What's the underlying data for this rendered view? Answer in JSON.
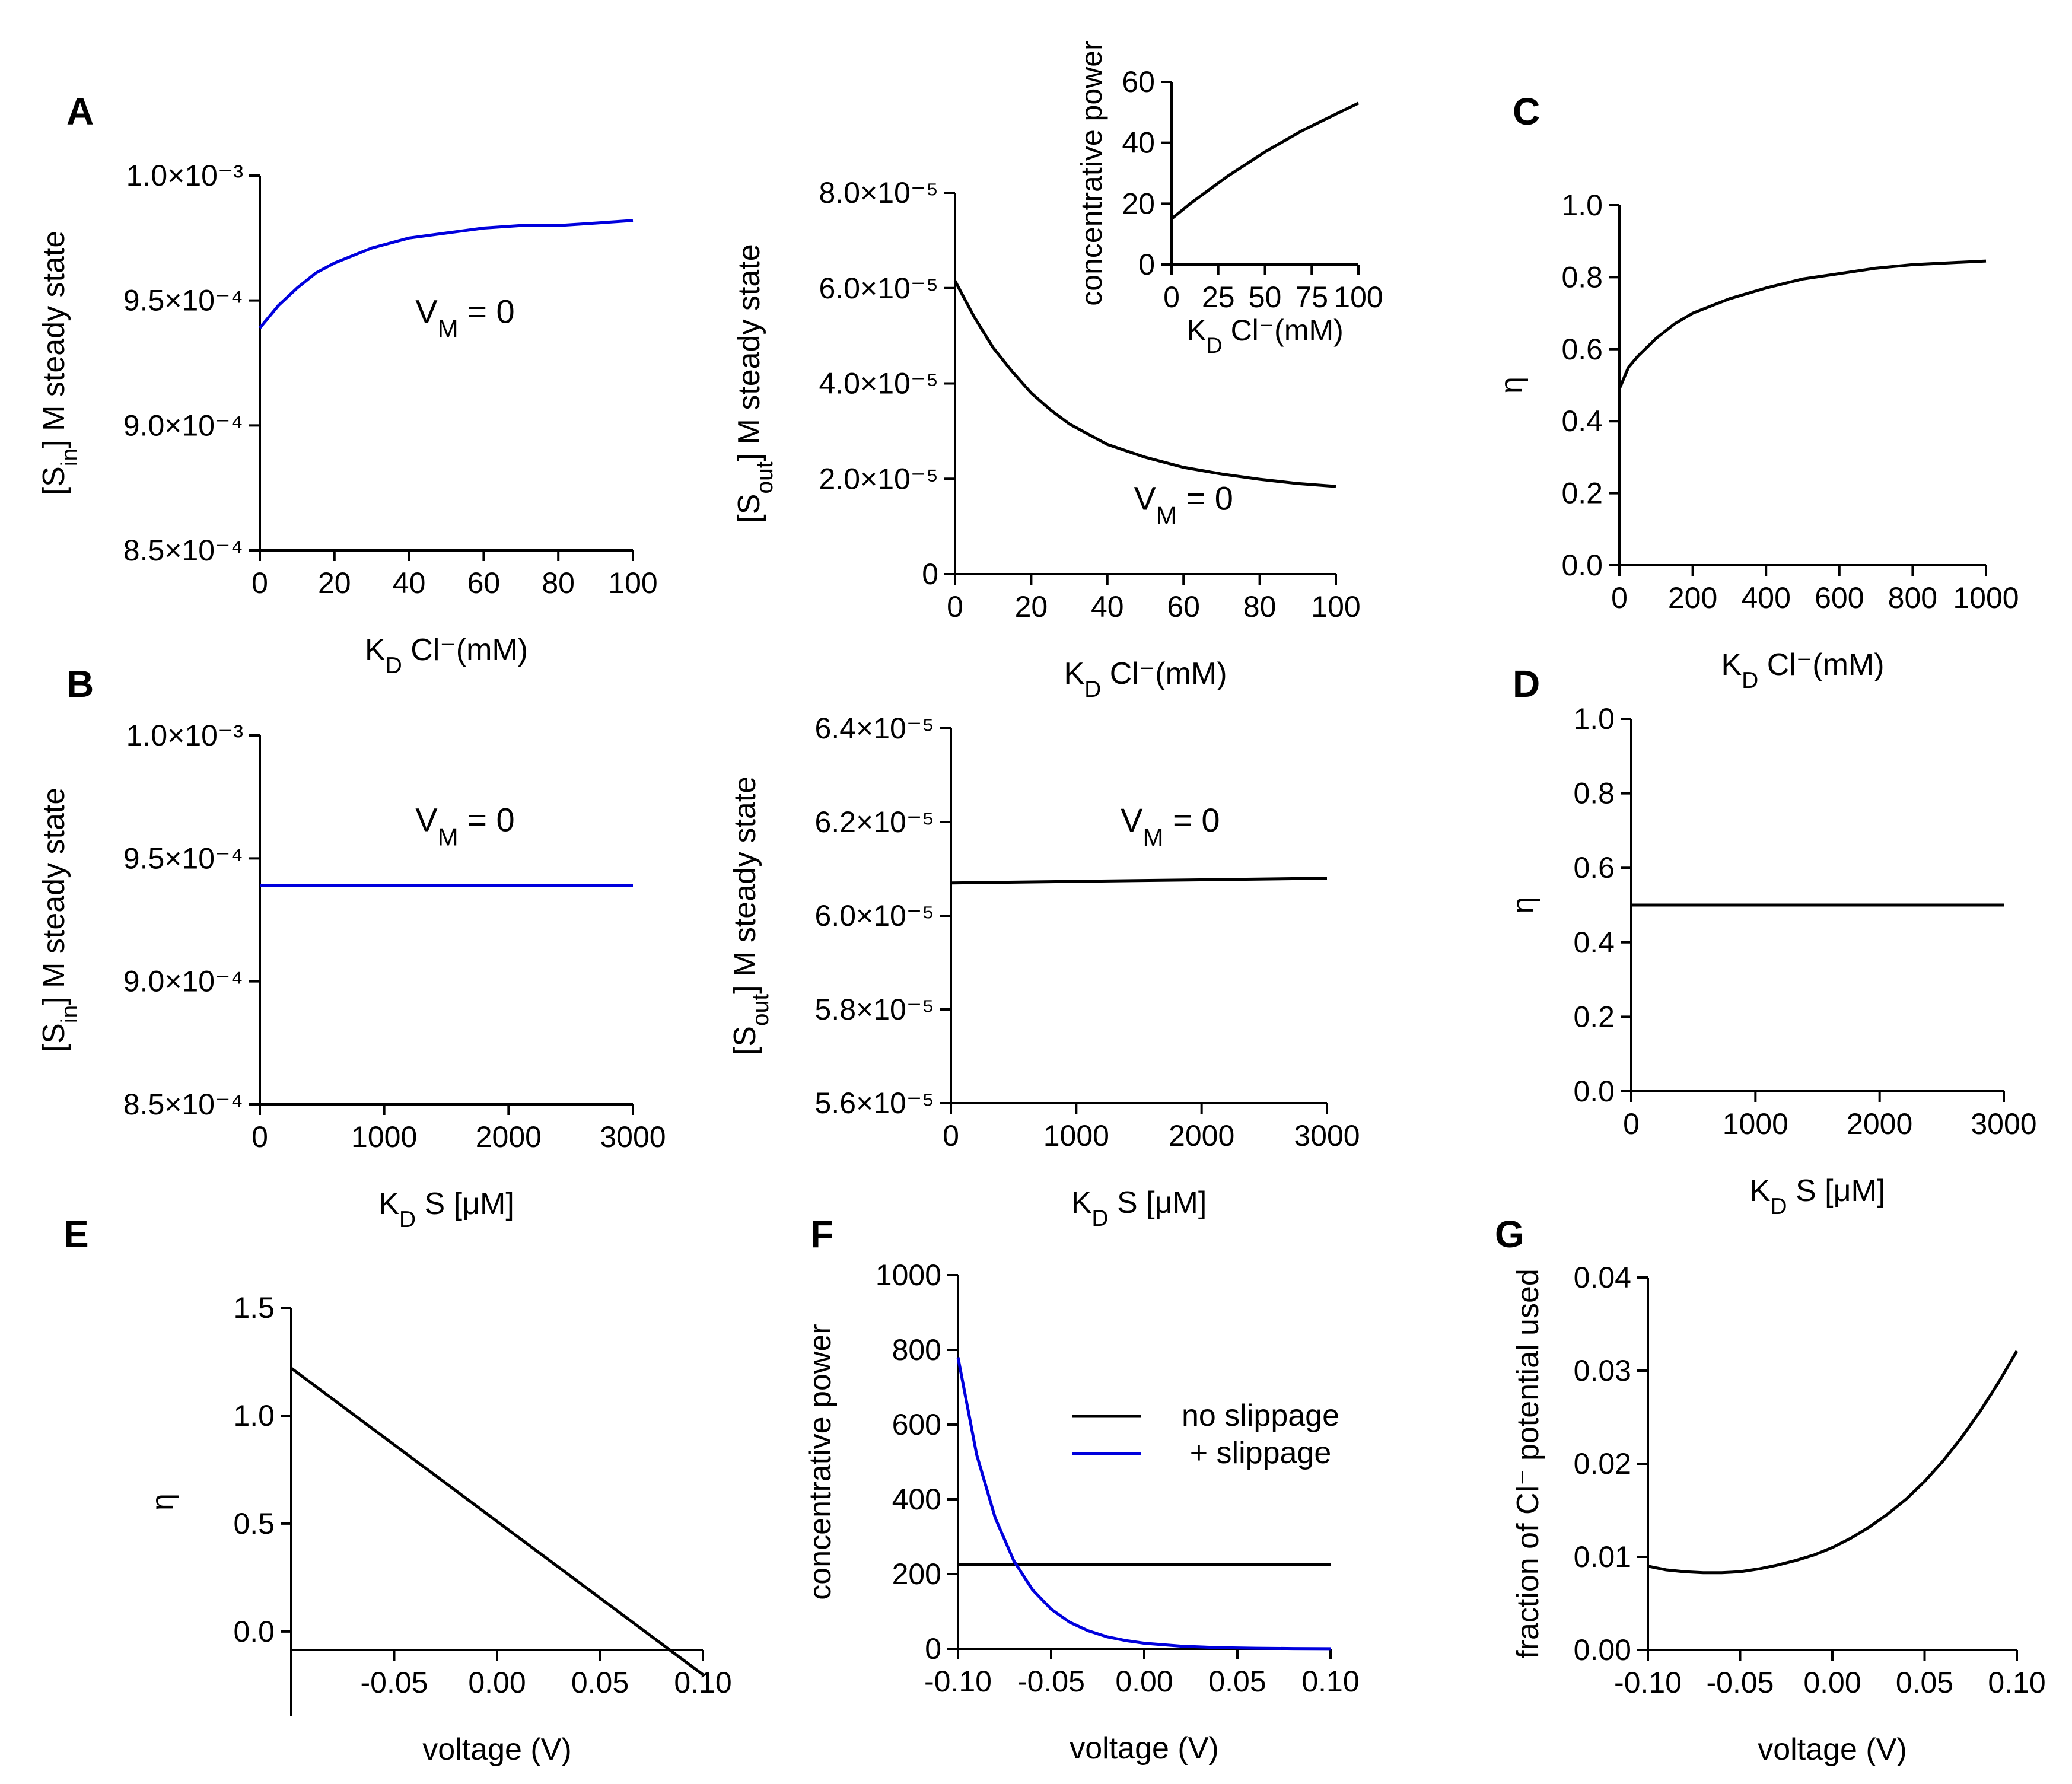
{
  "chart_data": [
    {
      "id": "A_left",
      "panel_letter": "A",
      "type": "line",
      "ylabel": "[S_in] M steady state",
      "xlabel": "K_D Cl⁻(mM)",
      "xlim": [
        0,
        100
      ],
      "ylim": [
        0.00085,
        0.001
      ],
      "xticks": [
        0,
        20,
        40,
        60,
        80,
        100
      ],
      "xtick_labels": [
        "0",
        "20",
        "40",
        "60",
        "80",
        "100"
      ],
      "yticks": [
        0.00085,
        0.0009,
        0.00095,
        0.001
      ],
      "ytick_labels": [
        "8.5×10⁻⁴",
        "9.0×10⁻⁴",
        "9.5×10⁻⁴",
        "1.0×10⁻³"
      ],
      "annotation": "V_M = 0",
      "annotation_at": [
        55,
        0.000941
      ],
      "series": [
        {
          "color": "#0000dd",
          "x": [
            0,
            5,
            10,
            15,
            20,
            25,
            30,
            40,
            50,
            60,
            70,
            80,
            90,
            100
          ],
          "y": [
            0.000939,
            0.000948,
            0.000955,
            0.000961,
            0.000965,
            0.000968,
            0.000971,
            0.000975,
            0.000977,
            0.000979,
            0.00098,
            0.00098,
            0.000981,
            0.000982
          ]
        }
      ]
    },
    {
      "id": "A_mid",
      "type": "line",
      "ylabel": "[S_out] M steady state",
      "xlabel": "K_D Cl⁻(mM)",
      "xlim": [
        0,
        100
      ],
      "ylim": [
        0,
        8e-05
      ],
      "xticks": [
        0,
        20,
        40,
        60,
        80,
        100
      ],
      "xtick_labels": [
        "0",
        "20",
        "40",
        "60",
        "80",
        "100"
      ],
      "yticks": [
        0,
        2e-05,
        4e-05,
        6e-05,
        8e-05
      ],
      "ytick_labels": [
        "0",
        "2.0×10⁻⁵",
        "4.0×10⁻⁵",
        "6.0×10⁻⁵",
        "8.0×10⁻⁵"
      ],
      "annotation": "V_M = 0",
      "annotation_at": [
        60,
        1.35e-05
      ],
      "series": [
        {
          "color": "#000000",
          "x": [
            0,
            5,
            10,
            15,
            20,
            25,
            30,
            40,
            50,
            60,
            70,
            80,
            90,
            100
          ],
          "y": [
            6.15e-05,
            5.4e-05,
            4.75e-05,
            4.25e-05,
            3.8e-05,
            3.45e-05,
            3.15e-05,
            2.72e-05,
            2.45e-05,
            2.24e-05,
            2.1e-05,
            1.99e-05,
            1.9e-05,
            1.84e-05
          ]
        }
      ]
    },
    {
      "id": "A_inset",
      "type": "line",
      "ylabel": "concentrative power",
      "xlabel": "K_D Cl⁻(mM)",
      "xlim": [
        0,
        100
      ],
      "ylim": [
        0,
        60
      ],
      "xticks": [
        0,
        25,
        50,
        75,
        100
      ],
      "xtick_labels": [
        "0",
        "25",
        "50",
        "75",
        "100"
      ],
      "yticks": [
        0,
        20,
        40,
        60
      ],
      "ytick_labels": [
        "0",
        "20",
        "40",
        "60"
      ],
      "series": [
        {
          "color": "#000000",
          "x": [
            0,
            10,
            20,
            30,
            40,
            50,
            60,
            70,
            80,
            90,
            100
          ],
          "y": [
            15,
            20,
            24.5,
            29,
            33,
            37,
            40.5,
            44,
            47,
            50,
            53
          ]
        }
      ]
    },
    {
      "id": "C",
      "panel_letter": "C",
      "type": "line",
      "ylabel": "η",
      "xlabel": "K_D Cl⁻(mM)",
      "xlim": [
        0,
        1000
      ],
      "ylim": [
        0,
        1
      ],
      "xticks": [
        0,
        200,
        400,
        600,
        800,
        1000
      ],
      "xtick_labels": [
        "0",
        "200",
        "400",
        "600",
        "800",
        "1000"
      ],
      "yticks": [
        0,
        0.2,
        0.4,
        0.6,
        0.8,
        1
      ],
      "ytick_labels": [
        "0.0",
        "0.2",
        "0.4",
        "0.6",
        "0.8",
        "1.0"
      ],
      "series": [
        {
          "color": "#000000",
          "x": [
            0,
            25,
            50,
            100,
            150,
            200,
            300,
            400,
            500,
            600,
            700,
            800,
            900,
            1000
          ],
          "y": [
            0.49,
            0.55,
            0.58,
            0.63,
            0.67,
            0.7,
            0.74,
            0.77,
            0.795,
            0.81,
            0.825,
            0.835,
            0.84,
            0.845
          ]
        }
      ]
    },
    {
      "id": "B_left",
      "panel_letter": "B",
      "type": "line",
      "ylabel": "[S_in] M steady state",
      "xlabel": "K_D S [μM]",
      "xlim": [
        0,
        3000
      ],
      "ylim": [
        0.00085,
        0.001
      ],
      "xticks": [
        0,
        1000,
        2000,
        3000
      ],
      "xtick_labels": [
        "0",
        "1000",
        "2000",
        "3000"
      ],
      "yticks": [
        0.00085,
        0.0009,
        0.00095,
        0.001
      ],
      "ytick_labels": [
        "8.5×10⁻⁴",
        "9.0×10⁻⁴",
        "9.5×10⁻⁴",
        "1.0×10⁻³"
      ],
      "annotation": "V_M = 0",
      "annotation_at": [
        1650,
        0.000961
      ],
      "series": [
        {
          "color": "#0000dd",
          "x": [
            0,
            3000
          ],
          "y": [
            0.000939,
            0.000939
          ]
        }
      ]
    },
    {
      "id": "B_mid",
      "type": "line",
      "ylabel": "[S_out] M steady state",
      "xlabel": "K_D S [μM]",
      "xlim": [
        0,
        3000
      ],
      "ylim": [
        5.6e-05,
        6.4e-05
      ],
      "xticks": [
        0,
        1000,
        2000,
        3000
      ],
      "xtick_labels": [
        "0",
        "1000",
        "2000",
        "3000"
      ],
      "yticks": [
        5.6e-05,
        5.8e-05,
        6e-05,
        6.2e-05,
        6.4e-05
      ],
      "ytick_labels": [
        "5.6×10⁻⁵",
        "5.8×10⁻⁵",
        "6.0×10⁻⁵",
        "6.2×10⁻⁵",
        "6.4×10⁻⁵"
      ],
      "annotation": "V_M = 0",
      "annotation_at": [
        1750,
        6.18e-05
      ],
      "series": [
        {
          "color": "#000000",
          "x": [
            0,
            3000
          ],
          "y": [
            6.07e-05,
            6.08e-05
          ]
        }
      ]
    },
    {
      "id": "D",
      "panel_letter": "D",
      "type": "line",
      "ylabel": "η",
      "xlabel": "K_D S [μM]",
      "xlim": [
        0,
        3000
      ],
      "ylim": [
        0,
        1
      ],
      "xticks": [
        0,
        1000,
        2000,
        3000
      ],
      "xtick_labels": [
        "0",
        "1000",
        "2000",
        "3000"
      ],
      "yticks": [
        0,
        0.2,
        0.4,
        0.6,
        0.8,
        1
      ],
      "ytick_labels": [
        "0.0",
        "0.2",
        "0.4",
        "0.6",
        "0.8",
        "1.0"
      ],
      "series": [
        {
          "color": "#000000",
          "x": [
            0,
            3000
          ],
          "y": [
            0.5,
            0.5
          ]
        }
      ]
    },
    {
      "id": "E",
      "panel_letter": "E",
      "type": "line",
      "ylabel": "η",
      "xlabel": "voltage (V)",
      "xlim": [
        -0.1,
        0.1
      ],
      "ylim": [
        -0.3,
        1.5
      ],
      "xticks": [
        -0.05,
        0,
        0.05,
        0.1
      ],
      "xtick_labels": [
        "-0.05",
        "0.00",
        "0.05",
        "0.10"
      ],
      "yticks": [
        0,
        0.5,
        1,
        1.5
      ],
      "ytick_labels": [
        "0.0",
        "0.5",
        "1.0",
        "1.5"
      ],
      "series": [
        {
          "color": "#000000",
          "x": [
            -0.1,
            0.1
          ],
          "y": [
            1.22,
            -0.2
          ]
        }
      ]
    },
    {
      "id": "F",
      "panel_letter": "F",
      "type": "line",
      "ylabel": "concentrative power",
      "xlabel": "voltage (V)",
      "xlim": [
        -0.1,
        0.1
      ],
      "ylim": [
        0,
        1000
      ],
      "xticks": [
        -0.1,
        -0.05,
        0,
        0.05,
        0.1
      ],
      "xtick_labels": [
        "-0.10",
        "-0.05",
        "0.00",
        "0.05",
        "0.10"
      ],
      "yticks": [
        0,
        200,
        400,
        600,
        800,
        1000
      ],
      "ytick_labels": [
        "0",
        "200",
        "400",
        "600",
        "800",
        "1000"
      ],
      "legend_position": "upper-right",
      "series": [
        {
          "name": "no slippage",
          "color": "#000000",
          "x": [
            -0.1,
            0.1
          ],
          "y": [
            225,
            225
          ]
        },
        {
          "name": "+ slippage",
          "color": "#0000dd",
          "x": [
            -0.1,
            -0.09,
            -0.08,
            -0.07,
            -0.06,
            -0.05,
            -0.04,
            -0.03,
            -0.02,
            -0.01,
            0,
            0.02,
            0.04,
            0.06,
            0.08,
            0.1
          ],
          "y": [
            780,
            520,
            350,
            235,
            158,
            106,
            71,
            48,
            32,
            22,
            15,
            7,
            3,
            1.5,
            0.6,
            0.2
          ]
        }
      ]
    },
    {
      "id": "G",
      "panel_letter": "G",
      "type": "line",
      "ylabel": "fraction of Cl⁻ potential used",
      "xlabel": "voltage (V)",
      "xlim": [
        -0.1,
        0.1
      ],
      "ylim": [
        0,
        0.04
      ],
      "xticks": [
        -0.1,
        -0.05,
        0,
        0.05,
        0.1
      ],
      "xtick_labels": [
        "-0.10",
        "-0.05",
        "0.00",
        "0.05",
        "0.10"
      ],
      "yticks": [
        0,
        0.01,
        0.02,
        0.03,
        0.04
      ],
      "ytick_labels": [
        "0.00",
        "0.01",
        "0.02",
        "0.03",
        "0.04"
      ],
      "series": [
        {
          "color": "#000000",
          "x": [
            -0.1,
            -0.09,
            -0.08,
            -0.07,
            -0.06,
            -0.05,
            -0.04,
            -0.03,
            -0.02,
            -0.01,
            0,
            0.01,
            0.02,
            0.03,
            0.04,
            0.05,
            0.06,
            0.07,
            0.08,
            0.09,
            0.1
          ],
          "y": [
            0.009,
            0.0086,
            0.0084,
            0.0083,
            0.0083,
            0.0084,
            0.0087,
            0.0091,
            0.0096,
            0.0102,
            0.011,
            0.012,
            0.0132,
            0.0146,
            0.0162,
            0.0181,
            0.0203,
            0.0228,
            0.0256,
            0.0287,
            0.0321
          ]
        }
      ]
    }
  ]
}
